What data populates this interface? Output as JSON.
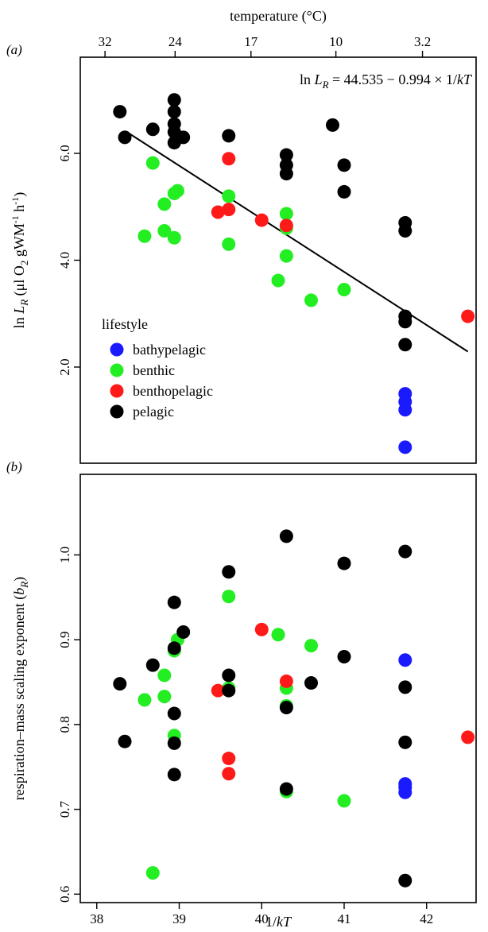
{
  "colors": {
    "bathypelagic": "#1a1aff",
    "benthic": "#22ee22",
    "benthopelagic": "#ff1a1a",
    "pelagic": "#000000"
  },
  "chart_data": [
    {
      "type": "scatter",
      "panel_label": "(a)",
      "top_axis": {
        "label": "temperature (°C)",
        "ticks": [
          {
            "x": 38.1,
            "label": "32"
          },
          {
            "x": 38.95,
            "label": "24"
          },
          {
            "x": 39.87,
            "label": "17"
          },
          {
            "x": 40.9,
            "label": "10"
          },
          {
            "x": 41.95,
            "label": "3.2"
          }
        ]
      },
      "xlabel": "",
      "xlim": [
        37.8,
        42.6
      ],
      "ylim": [
        0.2,
        7.8
      ],
      "ylabel_parts": {
        "pre": "ln ",
        "L": "L",
        "sub": "R",
        "rest": " (μl O",
        "o2sub": "2",
        "unit": " gWM",
        "exp1": "-1",
        "h": " h",
        "exp2": "-1",
        "close": ")"
      },
      "yticks": [
        2.0,
        4.0,
        6.0
      ],
      "yticklabels": [
        "2.0",
        "4.0",
        "6.0"
      ],
      "equation": {
        "pre": "ln ",
        "L": "L",
        "sub": "R",
        "rest": " = 44.535 − 0.994 × 1/",
        "kT": "kT"
      },
      "fit_line": {
        "intercept": 44.535,
        "slope": -0.994,
        "x_range": [
          38.35,
          42.5
        ]
      },
      "legend": {
        "title": "lifestyle",
        "placement": "bottom-left",
        "entries": [
          "bathypelagic",
          "benthic",
          "benthopelagic",
          "pelagic"
        ]
      },
      "series": [
        {
          "name": "bathypelagic",
          "points": [
            [
              41.74,
              1.5
            ],
            [
              41.74,
              1.35
            ],
            [
              41.74,
              1.2
            ],
            [
              41.74,
              0.5
            ]
          ]
        },
        {
          "name": "benthic",
          "points": [
            [
              38.58,
              4.45
            ],
            [
              38.68,
              5.82
            ],
            [
              38.82,
              5.05
            ],
            [
              38.82,
              4.55
            ],
            [
              38.94,
              5.25
            ],
            [
              38.98,
              5.3
            ],
            [
              38.94,
              4.42
            ],
            [
              39.6,
              5.2
            ],
            [
              39.6,
              4.3
            ],
            [
              40.2,
              3.62
            ],
            [
              40.3,
              4.87
            ],
            [
              40.3,
              4.6
            ],
            [
              40.3,
              4.08
            ],
            [
              40.6,
              3.25
            ],
            [
              41.0,
              3.45
            ]
          ]
        },
        {
          "name": "benthopelagic",
          "points": [
            [
              39.47,
              4.9
            ],
            [
              39.6,
              4.95
            ],
            [
              39.6,
              5.9
            ],
            [
              40.0,
              4.75
            ],
            [
              40.3,
              4.65
            ],
            [
              42.5,
              2.95
            ]
          ]
        },
        {
          "name": "pelagic",
          "points": [
            [
              38.28,
              6.78
            ],
            [
              38.34,
              6.3
            ],
            [
              38.68,
              6.45
            ],
            [
              38.94,
              7.0
            ],
            [
              38.94,
              6.78
            ],
            [
              38.94,
              6.55
            ],
            [
              38.94,
              6.4
            ],
            [
              38.94,
              6.2
            ],
            [
              39.05,
              6.3
            ],
            [
              39.6,
              6.33
            ],
            [
              40.3,
              5.97
            ],
            [
              40.3,
              5.78
            ],
            [
              40.3,
              5.62
            ],
            [
              40.86,
              6.53
            ],
            [
              41.0,
              5.78
            ],
            [
              41.0,
              5.28
            ],
            [
              41.74,
              4.7
            ],
            [
              41.74,
              4.55
            ],
            [
              41.74,
              2.95
            ],
            [
              41.74,
              2.85
            ],
            [
              41.74,
              2.42
            ]
          ]
        }
      ]
    },
    {
      "type": "scatter",
      "panel_label": "(b)",
      "xlabel": "1/kT",
      "xlim": [
        37.8,
        42.6
      ],
      "ylim": [
        0.59,
        1.095
      ],
      "xticks": [
        38,
        39,
        40,
        41,
        42
      ],
      "xticklabels": [
        "38",
        "39",
        "40",
        "41",
        "42"
      ],
      "ylabel_parts": {
        "pre": "respiration–mass scaling exponent (",
        "b": "b",
        "sub": "R",
        "close": ")"
      },
      "yticks": [
        0.6,
        0.7,
        0.8,
        0.9,
        1.0
      ],
      "yticklabels": [
        "0.6",
        "0.7",
        "0.8",
        "0.9",
        "1.0"
      ],
      "series": [
        {
          "name": "bathypelagic",
          "points": [
            [
              41.74,
              0.876
            ],
            [
              41.74,
              0.73
            ],
            [
              41.74,
              0.726
            ],
            [
              41.74,
              0.72
            ]
          ]
        },
        {
          "name": "benthic",
          "points": [
            [
              38.58,
              0.829
            ],
            [
              38.68,
              0.625
            ],
            [
              38.82,
              0.858
            ],
            [
              38.82,
              0.833
            ],
            [
              38.94,
              0.887
            ],
            [
              38.98,
              0.9
            ],
            [
              38.94,
              0.787
            ],
            [
              39.6,
              0.951
            ],
            [
              39.6,
              0.843
            ],
            [
              40.2,
              0.906
            ],
            [
              40.3,
              0.843
            ],
            [
              40.3,
              0.822
            ],
            [
              40.3,
              0.721
            ],
            [
              40.6,
              0.893
            ],
            [
              41.0,
              0.71
            ]
          ]
        },
        {
          "name": "benthopelagic",
          "points": [
            [
              39.47,
              0.84
            ],
            [
              39.6,
              0.76
            ],
            [
              39.6,
              0.742
            ],
            [
              40.0,
              0.912
            ],
            [
              40.3,
              0.851
            ],
            [
              42.5,
              0.785
            ]
          ]
        },
        {
          "name": "pelagic",
          "points": [
            [
              38.28,
              0.848
            ],
            [
              38.34,
              0.78
            ],
            [
              38.68,
              0.87
            ],
            [
              38.94,
              0.944
            ],
            [
              38.94,
              0.89
            ],
            [
              38.94,
              0.813
            ],
            [
              38.94,
              0.778
            ],
            [
              38.94,
              0.741
            ],
            [
              39.05,
              0.909
            ],
            [
              39.6,
              0.98
            ],
            [
              39.6,
              0.858
            ],
            [
              39.6,
              0.84
            ],
            [
              40.3,
              1.022
            ],
            [
              40.3,
              0.82
            ],
            [
              40.3,
              0.724
            ],
            [
              40.6,
              0.849
            ],
            [
              41.0,
              0.99
            ],
            [
              41.0,
              0.88
            ],
            [
              41.74,
              1.004
            ],
            [
              41.74,
              0.844
            ],
            [
              41.74,
              0.779
            ],
            [
              41.74,
              0.616
            ]
          ]
        }
      ]
    }
  ]
}
